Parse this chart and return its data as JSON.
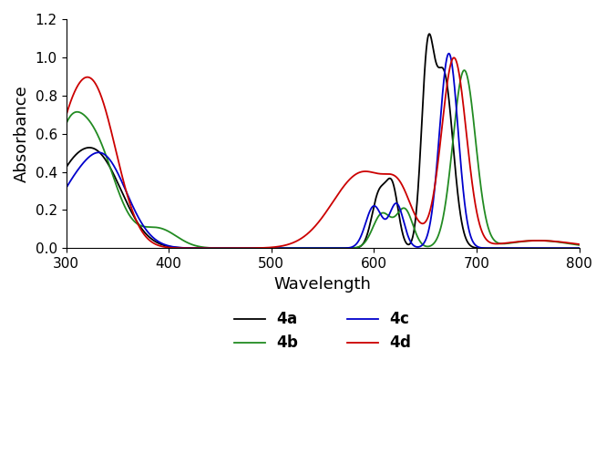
{
  "title": "",
  "xlabel": "Wavelength",
  "ylabel": "Absorbance",
  "xlim": [
    300,
    800
  ],
  "ylim": [
    0,
    1.2
  ],
  "xticks": [
    300,
    400,
    500,
    600,
    700,
    800
  ],
  "yticks": [
    0,
    0.2,
    0.4,
    0.6,
    0.8,
    1.0,
    1.2
  ],
  "series": {
    "4a": {
      "color": "#000000",
      "linewidth": 1.3
    },
    "4b": {
      "color": "#228B22",
      "linewidth": 1.3
    },
    "4c": {
      "color": "#0000CC",
      "linewidth": 1.3
    },
    "4d": {
      "color": "#CC0000",
      "linewidth": 1.3
    }
  },
  "legend_fontsize": 11,
  "axis_fontsize": 13
}
